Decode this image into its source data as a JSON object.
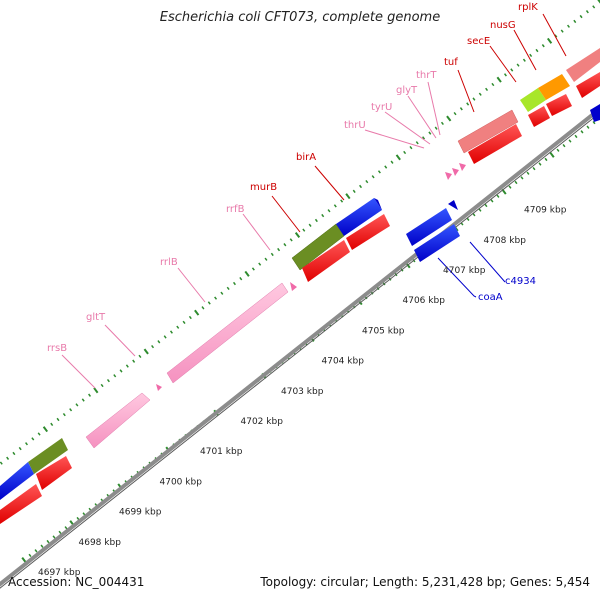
{
  "title": "Escherichia coli CFT073, complete genome",
  "accession": "Accession: NC_004431",
  "summary": "Topology: circular; Length: 5,231,428 bp; Genes: 5,454",
  "colors": {
    "backbone": "#8c8c8c",
    "tick": "#2e8b2e",
    "rna_gene": "#f39ac4",
    "trna_gene": "#f06aa8",
    "cds_red": "#ff0000",
    "cds_blue": "#0000dd",
    "olive": "#6b8e23",
    "salmon": "#f08080",
    "lime": "#a8e62a",
    "orange": "#ff9900",
    "label_red": "#cc0000",
    "label_pink": "#e87aaa",
    "label_blue": "#0000cc"
  },
  "scale_labels": [
    "4697 kbp",
    "4698 kbp",
    "4699 kbp",
    "4700 kbp",
    "4701 kbp",
    "4702 kbp",
    "4703 kbp",
    "4704 kbp",
    "4705 kbp",
    "4706 kbp",
    "4707 kbp",
    "4708 kbp",
    "4709 kbp"
  ],
  "gene_labels": [
    {
      "text": "rrsB",
      "color": "label_pink"
    },
    {
      "text": "gltT",
      "color": "label_pink"
    },
    {
      "text": "rrlB",
      "color": "label_pink"
    },
    {
      "text": "rrfB",
      "color": "label_pink"
    },
    {
      "text": "murB",
      "color": "label_red"
    },
    {
      "text": "birA",
      "color": "label_red"
    },
    {
      "text": "thrU",
      "color": "label_pink"
    },
    {
      "text": "tyrU",
      "color": "label_pink"
    },
    {
      "text": "glyT",
      "color": "label_pink"
    },
    {
      "text": "thrT",
      "color": "label_pink"
    },
    {
      "text": "tuf",
      "color": "label_red"
    },
    {
      "text": "secE",
      "color": "label_red"
    },
    {
      "text": "nusG",
      "color": "label_red"
    },
    {
      "text": "rplK",
      "color": "label_red"
    },
    {
      "text": "coaA",
      "color": "label_blue"
    },
    {
      "text": "c4934",
      "color": "label_blue"
    }
  ]
}
